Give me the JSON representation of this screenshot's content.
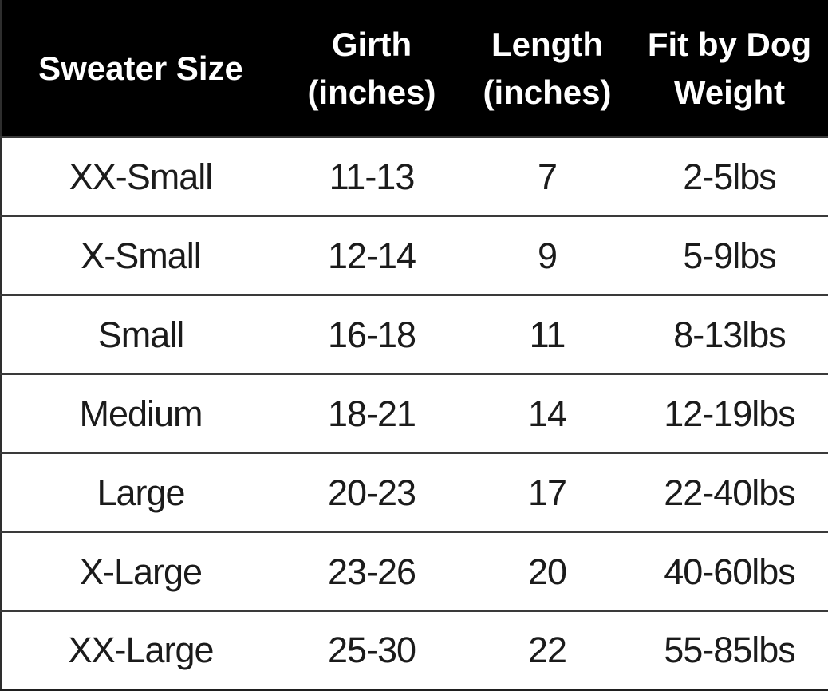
{
  "colors": {
    "header_background": "#000000",
    "header_text": "#ffffff",
    "body_text": "#1b1b1b",
    "row_divider": "#3a3a3a",
    "outer_border": "#2e2e2e",
    "page_background": "#ffffff"
  },
  "chart_data": {
    "type": "table",
    "columns": [
      {
        "name": "sweater-size",
        "lines": [
          "Sweater Size"
        ]
      },
      {
        "name": "girth-inches",
        "lines": [
          "Girth",
          "(inches)"
        ]
      },
      {
        "name": "length-inches",
        "lines": [
          "Length",
          "(inches)"
        ]
      },
      {
        "name": "fit-by-dog-weight",
        "lines": [
          "Fit by Dog",
          "Weight"
        ]
      }
    ],
    "rows": [
      [
        "XX-Small",
        "11-13",
        "7",
        "2-5lbs"
      ],
      [
        "X-Small",
        "12-14",
        "9",
        "5-9lbs"
      ],
      [
        "Small",
        "16-18",
        "11",
        "8-13lbs"
      ],
      [
        "Medium",
        "18-21",
        "14",
        "12-19lbs"
      ],
      [
        "Large",
        "20-23",
        "17",
        "22-40lbs"
      ],
      [
        "X-Large",
        "23-26",
        "20",
        "40-60lbs"
      ],
      [
        "XX-Large",
        "25-30",
        "22",
        "55-85lbs"
      ]
    ]
  }
}
